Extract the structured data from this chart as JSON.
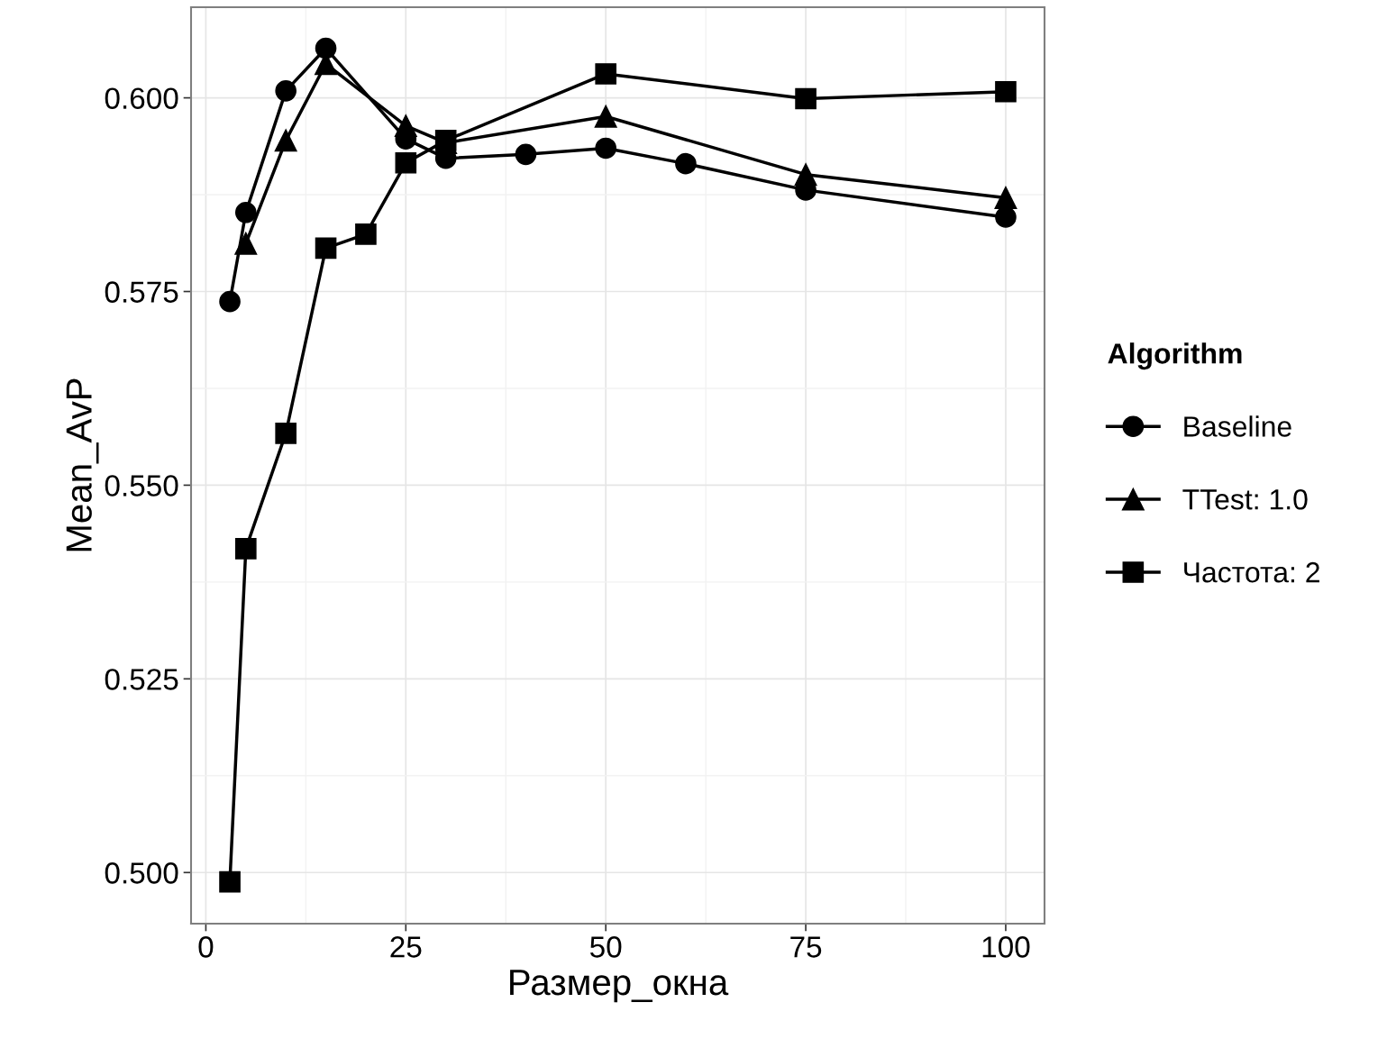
{
  "chart_data": {
    "type": "line",
    "xlabel": "Размер_окна",
    "ylabel": "Mean_AvP",
    "legend_title": "Algorithm",
    "legend": "right",
    "grid": true,
    "line_style": "solid",
    "xlim": [
      -1.85,
      104.85
    ],
    "xticks": [
      0,
      25,
      50,
      75,
      100
    ],
    "ylim": [
      0.4934,
      0.6117
    ],
    "yticks": [
      {
        "value": 0.5,
        "label": "0.500"
      },
      {
        "value": 0.525,
        "label": "0.525"
      },
      {
        "value": 0.55,
        "label": "0.550"
      },
      {
        "value": 0.575,
        "label": "0.575"
      },
      {
        "value": 0.6,
        "label": "0.600"
      }
    ],
    "series": [
      {
        "name": "Baseline",
        "color": "#000000",
        "marker": "circle",
        "x": [
          3,
          5,
          10,
          15,
          25,
          30,
          40,
          50,
          60,
          75,
          100
        ],
        "values": [
          0.5737,
          0.5852,
          0.6009,
          0.6064,
          0.5947,
          0.5922,
          0.5927,
          0.5935,
          0.5915,
          0.5881,
          0.5846
        ]
      },
      {
        "name": "TTest: 1.0",
        "color": "#000000",
        "marker": "triangle",
        "x": [
          5,
          10,
          15,
          25,
          30,
          50,
          75,
          100
        ],
        "values": [
          0.5812,
          0.5945,
          0.6044,
          0.5964,
          0.5942,
          0.5976,
          0.5901,
          0.5871
        ]
      },
      {
        "name": "Частота: 2",
        "color": "#000000",
        "marker": "square",
        "x": [
          3,
          5,
          10,
          15,
          20,
          25,
          30,
          50,
          75,
          100
        ],
        "values": [
          0.4988,
          0.5418,
          0.5567,
          0.5806,
          0.5824,
          0.5916,
          0.5945,
          0.6031,
          0.5999,
          0.6008
        ]
      }
    ]
  }
}
